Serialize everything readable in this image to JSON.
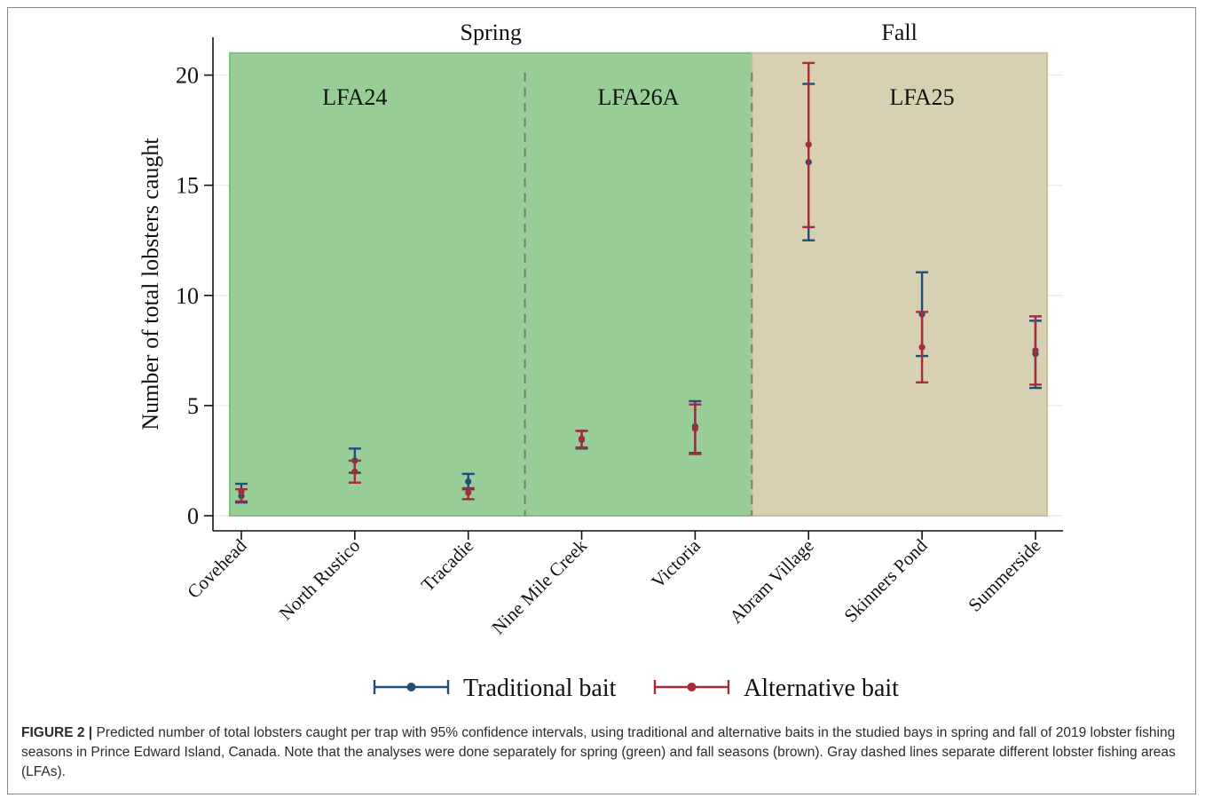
{
  "chart_data": {
    "type": "scatter",
    "subtype": "point-with-95%-confidence-interval",
    "ylabel": "Number of total lobsters caught",
    "xlabel": "",
    "ylim": [
      0,
      21
    ],
    "yticks": [
      0,
      5,
      10,
      15,
      20
    ],
    "categories": [
      "Covehead",
      "North Rustico",
      "Tracadie",
      "Nine Mile Creek",
      "Victoria",
      "Abram Village",
      "Skinners Pond",
      "Summerside"
    ],
    "seasons": [
      {
        "label": "Spring",
        "color": "#98cd98",
        "from": 0,
        "to": 4
      },
      {
        "label": "Fall",
        "color": "#d8d0b2",
        "from": 5,
        "to": 7
      }
    ],
    "areas": [
      {
        "label": "LFA24",
        "from": 0,
        "to": 2
      },
      {
        "label": "LFA26A",
        "from": 3,
        "to": 4
      },
      {
        "label": "LFA25",
        "from": 5,
        "to": 7
      }
    ],
    "series": [
      {
        "name": "Traditional bait",
        "color": "#1f4e79",
        "values": [
          0.9,
          2.5,
          1.55,
          3.45,
          4.05,
          16.05,
          9.15,
          7.35
        ],
        "lower": [
          0.6,
          1.95,
          1.2,
          3.05,
          2.85,
          12.5,
          7.25,
          5.8
        ],
        "upper": [
          1.45,
          3.05,
          1.9,
          3.85,
          5.2,
          19.6,
          11.05,
          8.85
        ]
      },
      {
        "name": "Alternative bait",
        "color": "#a32c3d",
        "values": [
          1.1,
          2.0,
          1.05,
          3.5,
          3.95,
          16.85,
          7.65,
          7.5
        ],
        "lower": [
          0.65,
          1.5,
          0.75,
          3.1,
          2.8,
          13.1,
          6.05,
          5.95
        ],
        "upper": [
          1.2,
          2.5,
          1.25,
          3.85,
          5.05,
          20.55,
          9.25,
          9.05
        ]
      }
    ],
    "legend": "bottom-center",
    "grid": true
  },
  "caption": {
    "label": "FIGURE 2 |",
    "text": " Predicted number of total lobsters caught per trap with 95% confidence intervals, using traditional and alternative baits in the studied bays in spring and fall of 2019 lobster fishing seasons in Prince Edward Island, Canada. Note that the analyses were done separately for spring (green) and fall seasons (brown). Gray dashed lines separate different lobster fishing areas (LFAs)."
  }
}
